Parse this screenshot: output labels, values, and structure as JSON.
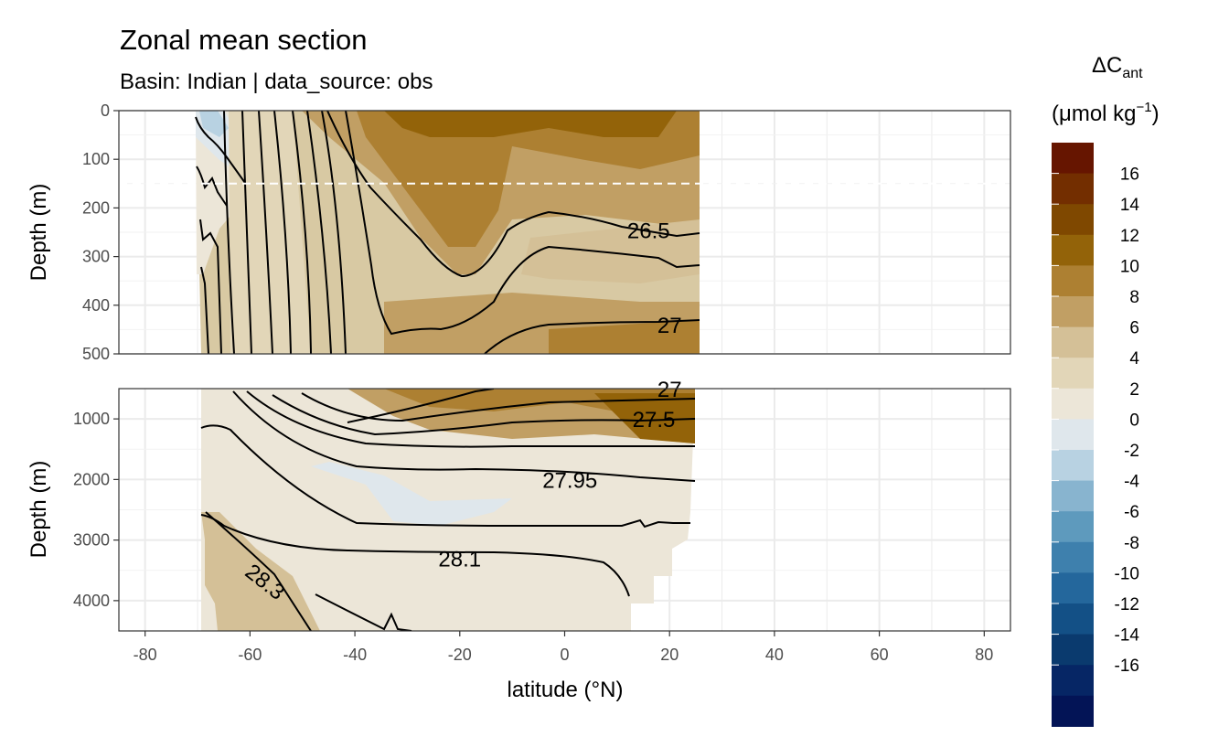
{
  "chart_data": {
    "type": "heatmap",
    "title": "Zonal mean section",
    "subtitle": "Basin: Indian | data_source: obs",
    "xlabel": "latitude (°N)",
    "ylabel": "Depth (m)",
    "xlim": [
      -85,
      85
    ],
    "xticks": [
      -80,
      -60,
      -40,
      -20,
      0,
      20,
      40,
      60,
      80
    ],
    "data_extent_lat": [
      -70,
      25
    ],
    "panels": [
      {
        "name": "upper",
        "ylim": [
          0,
          500
        ],
        "yticks": [
          0,
          100,
          200,
          300,
          400,
          500
        ],
        "reference_line_depth": 150,
        "contour_labels": [
          {
            "text": "26.5",
            "lat": 16,
            "depth": 245
          },
          {
            "text": "27",
            "lat": 20,
            "depth": 440
          }
        ]
      },
      {
        "name": "lower",
        "ylim": [
          500,
          4500
        ],
        "yticks": [
          1000,
          2000,
          3000,
          4000
        ],
        "contour_labels": [
          {
            "text": "27",
            "lat": 20,
            "depth": 500
          },
          {
            "text": "27.5",
            "lat": 17,
            "depth": 1000
          },
          {
            "text": "27.95",
            "lat": 1,
            "depth": 2000
          },
          {
            "text": "28.1",
            "lat": -20,
            "depth": 3300
          },
          {
            "text": "28.3",
            "lat": -58,
            "depth": 3650
          }
        ]
      }
    ],
    "legend": {
      "title": "ΔC",
      "title_sub": "ant",
      "unit": "(μmol kg",
      "unit_sup": "−1",
      "unit_close": ")",
      "placement": "right",
      "breaks": [
        16,
        14,
        12,
        10,
        8,
        6,
        4,
        2,
        0,
        -2,
        -4,
        -6,
        -8,
        -10,
        -12,
        -14,
        -16
      ],
      "colors": [
        "#661500",
        "#732e00",
        "#7f4800",
        "#936309",
        "#ad8032",
        "#c19f64",
        "#d4c097",
        "#e2d6b8",
        "#ece6d8",
        "#dfe7ec",
        "#b8d2e2",
        "#88b4cf",
        "#5e9abd",
        "#3e80ad",
        "#24679c",
        "#135086",
        "#0a3a6e",
        "#062665",
        "#031456"
      ]
    }
  }
}
